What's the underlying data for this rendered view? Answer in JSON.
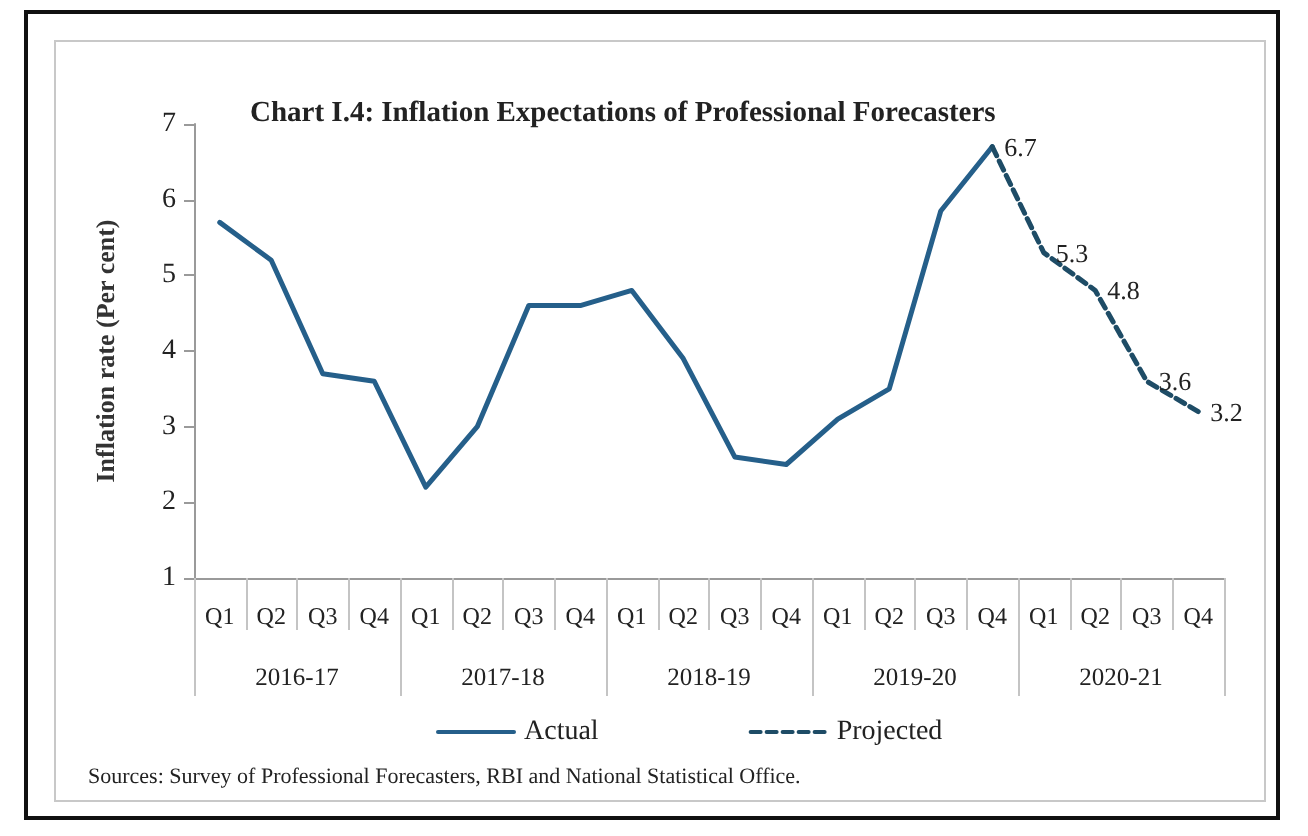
{
  "chart_data": {
    "type": "line",
    "title": "Chart I.4: Inflation Expectations of Professional Forecasters",
    "ylabel": "Inflation rate (Per cent)",
    "categories": [
      "Q1",
      "Q2",
      "Q3",
      "Q4",
      "Q1",
      "Q2",
      "Q3",
      "Q4",
      "Q1",
      "Q2",
      "Q3",
      "Q4",
      "Q1",
      "Q2",
      "Q3",
      "Q4",
      "Q1",
      "Q2",
      "Q3",
      "Q4"
    ],
    "series": [
      {
        "name": "Actual",
        "color": "#255f8a",
        "line_style": "solid",
        "values": [
          5.7,
          5.2,
          3.7,
          3.6,
          2.2,
          3.0,
          4.6,
          4.6,
          4.8,
          3.9,
          2.6,
          2.5,
          3.1,
          3.5,
          5.85,
          6.7,
          null,
          null,
          null,
          null
        ]
      },
      {
        "name": "Projected",
        "color": "#1e4c66",
        "line_style": "dashed",
        "values": [
          null,
          null,
          null,
          null,
          null,
          null,
          null,
          null,
          null,
          null,
          null,
          null,
          null,
          null,
          null,
          6.7,
          5.3,
          4.8,
          3.6,
          3.2
        ],
        "value_labels": [
          null,
          null,
          null,
          null,
          null,
          null,
          null,
          null,
          null,
          null,
          null,
          null,
          null,
          null,
          null,
          "6.7",
          "5.3",
          "4.8",
          "3.6",
          "3.2"
        ]
      }
    ],
    "ylim": [
      1,
      7
    ],
    "yticks": [
      1,
      2,
      3,
      4,
      5,
      6,
      7
    ],
    "grid": false,
    "legend": "bottom",
    "marker": "none",
    "annotations": [
      "2016-17",
      "2017-18",
      "2018-19",
      "2019-20",
      "2020-21",
      "Sources: Survey of Professional Forecasters, RBI and National Statistical Office."
    ]
  }
}
